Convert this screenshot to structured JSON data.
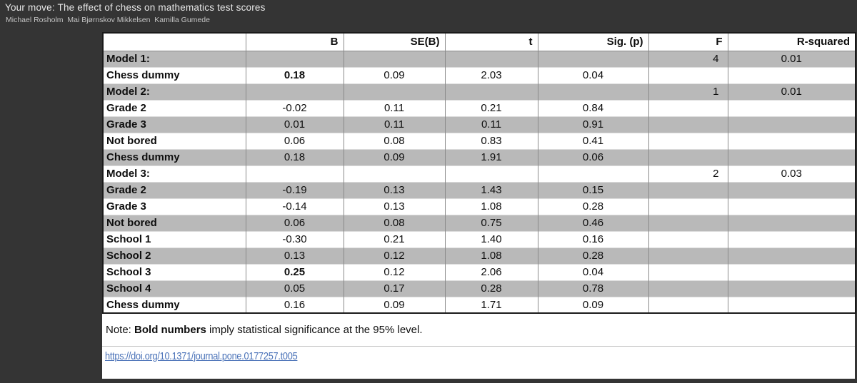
{
  "header": {
    "title": "Your move: The effect of chess on mathematics test scores",
    "authors": "Michael Rosholm  Mai Bjørnskov Mikkelsen  Kamilla Gumede"
  },
  "table": {
    "columns": [
      "",
      "B",
      "SE(B)",
      "t",
      "Sig. (p)",
      "F",
      "R-squared"
    ],
    "rows": [
      {
        "label": "Model 1:",
        "b": "",
        "se": "",
        "t": "",
        "sig": "",
        "f": "4",
        "r2": "0.01",
        "bold_b": false
      },
      {
        "label": "Chess dummy",
        "b": "0.18",
        "se": "0.09",
        "t": "2.03",
        "sig": "0.04",
        "f": "",
        "r2": "",
        "bold_b": true
      },
      {
        "label": "Model 2:",
        "b": "",
        "se": "",
        "t": "",
        "sig": "",
        "f": "1",
        "r2": "0.01",
        "bold_b": false
      },
      {
        "label": "Grade 2",
        "b": "-0.02",
        "se": "0.11",
        "t": "0.21",
        "sig": "0.84",
        "f": "",
        "r2": "",
        "bold_b": false
      },
      {
        "label": "Grade 3",
        "b": "0.01",
        "se": "0.11",
        "t": "0.11",
        "sig": "0.91",
        "f": "",
        "r2": "",
        "bold_b": false
      },
      {
        "label": "Not bored",
        "b": "0.06",
        "se": "0.08",
        "t": "0.83",
        "sig": "0.41",
        "f": "",
        "r2": "",
        "bold_b": false
      },
      {
        "label": "Chess dummy",
        "b": "0.18",
        "se": "0.09",
        "t": "1.91",
        "sig": "0.06",
        "f": "",
        "r2": "",
        "bold_b": false
      },
      {
        "label": "Model 3:",
        "b": "",
        "se": "",
        "t": "",
        "sig": "",
        "f": "2",
        "r2": "0.03",
        "bold_b": false
      },
      {
        "label": "Grade 2",
        "b": "-0.19",
        "se": "0.13",
        "t": "1.43",
        "sig": "0.15",
        "f": "",
        "r2": "",
        "bold_b": false
      },
      {
        "label": "Grade 3",
        "b": "-0.14",
        "se": "0.13",
        "t": "1.08",
        "sig": "0.28",
        "f": "",
        "r2": "",
        "bold_b": false
      },
      {
        "label": "Not bored",
        "b": "0.06",
        "se": "0.08",
        "t": "0.75",
        "sig": "0.46",
        "f": "",
        "r2": "",
        "bold_b": false
      },
      {
        "label": "School 1",
        "b": "-0.30",
        "se": "0.21",
        "t": "1.40",
        "sig": "0.16",
        "f": "",
        "r2": "",
        "bold_b": false
      },
      {
        "label": "School 2",
        "b": "0.13",
        "se": "0.12",
        "t": "1.08",
        "sig": "0.28",
        "f": "",
        "r2": "",
        "bold_b": false
      },
      {
        "label": "School 3",
        "b": "0.25",
        "se": "0.12",
        "t": "2.06",
        "sig": "0.04",
        "f": "",
        "r2": "",
        "bold_b": true
      },
      {
        "label": "School 4",
        "b": "0.05",
        "se": "0.17",
        "t": "0.28",
        "sig": "0.78",
        "f": "",
        "r2": "",
        "bold_b": false
      },
      {
        "label": "Chess dummy",
        "b": "0.16",
        "se": "0.09",
        "t": "1.71",
        "sig": "0.09",
        "f": "",
        "r2": "",
        "bold_b": false
      }
    ]
  },
  "note": {
    "prefix": "Note: ",
    "bold": "Bold numbers",
    "rest": " imply statistical significance at the 95% level."
  },
  "link": {
    "text": "https://doi.org/10.1371/journal.pone.0177257.t005"
  },
  "colors": {
    "background": "#343434",
    "panel": "#ffffff",
    "stripe_row": "#b9b9b9",
    "link_blue": "#4a72b8",
    "title_text": "#e8e8e8"
  }
}
